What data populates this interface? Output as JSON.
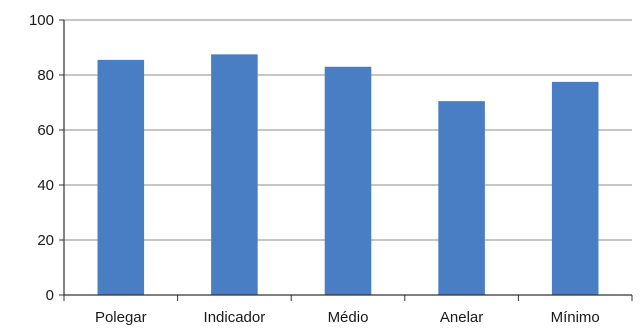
{
  "chart_data": {
    "type": "bar",
    "title": "",
    "xlabel": "",
    "ylabel": "",
    "categories": [
      "Polegar",
      "Indicador",
      "Médio",
      "Anelar",
      "Mínimo"
    ],
    "values": [
      85.5,
      87.5,
      83,
      70.5,
      77.5
    ],
    "ylim": [
      0,
      100
    ],
    "yticks": [
      0,
      20,
      40,
      60,
      80,
      100
    ],
    "grid": true,
    "legend": "none",
    "bar_color": "#4a7ec4",
    "grid_color": "#8c8c8c",
    "axis_color": "#333333"
  }
}
